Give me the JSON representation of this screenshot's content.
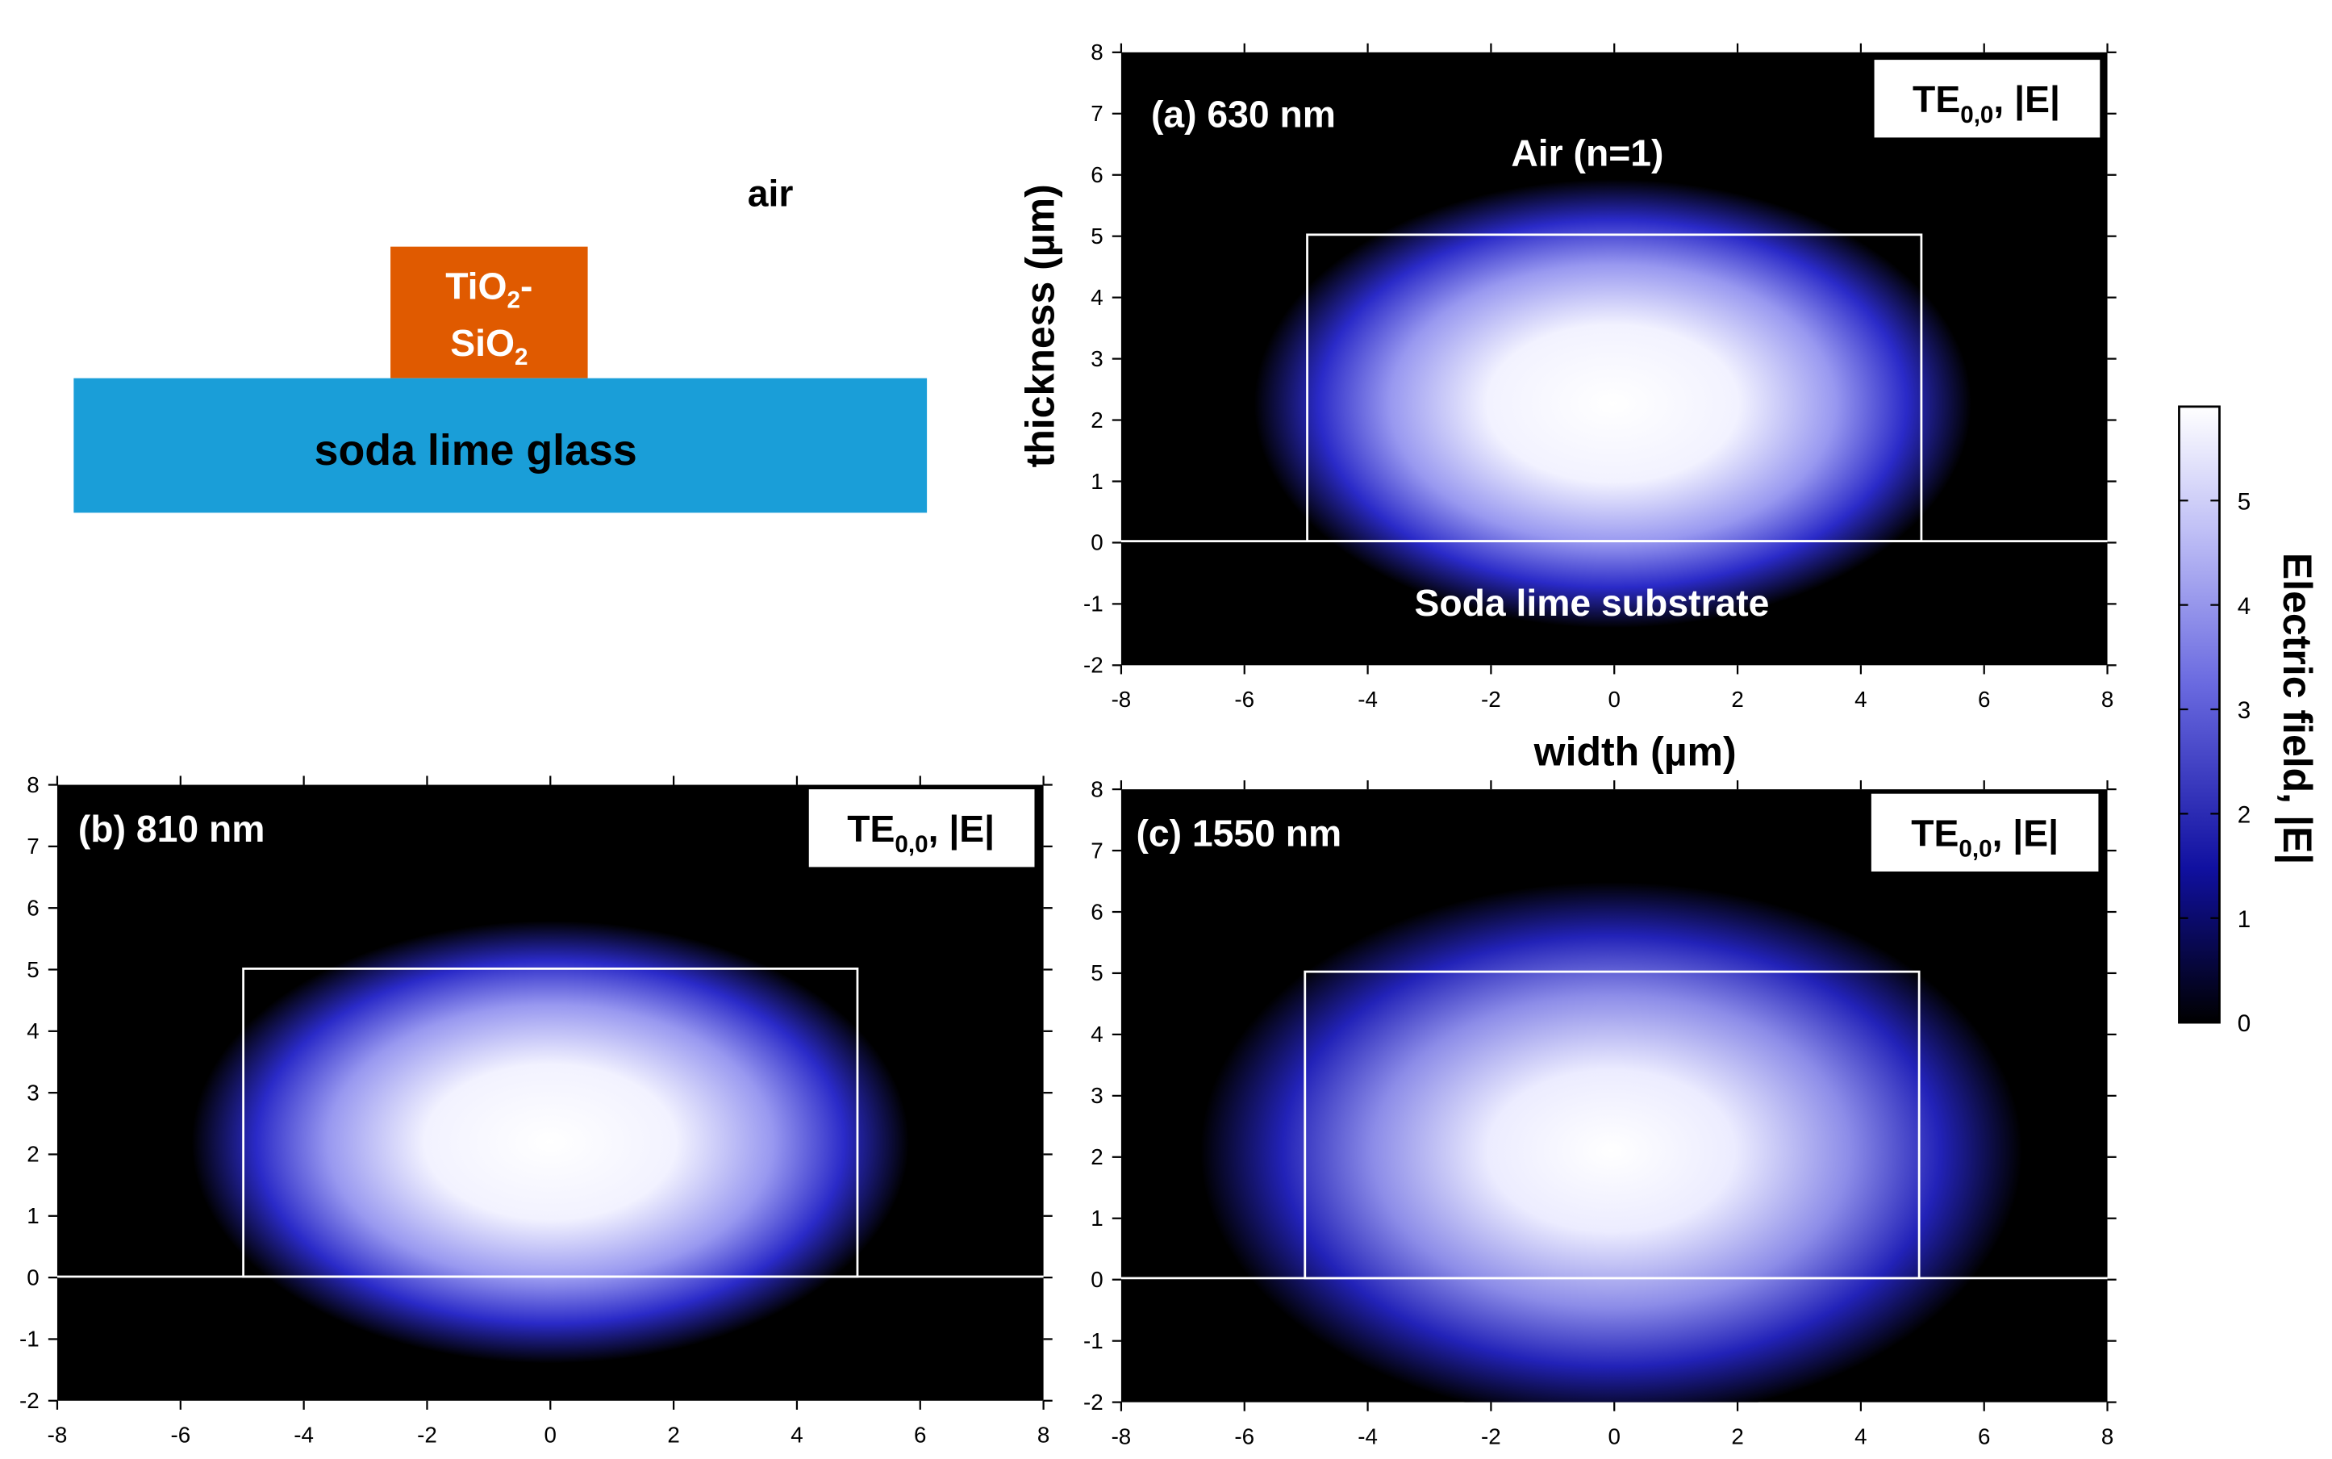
{
  "schematic": {
    "air_label": "air",
    "core_label_line1": "TiO",
    "core_label_line1_sub": "2",
    "core_label_line1_suffix": "-",
    "core_label_line2": "SiO",
    "core_label_line2_sub": "2",
    "substrate_label": "soda lime glass",
    "colors": {
      "core": "#e05a00",
      "substrate": "#1a9ed8"
    }
  },
  "axes": {
    "xlabel": "width (µm)",
    "ylabel": "thickness (µm)",
    "x_ticks": [
      "-8",
      "-6",
      "-4",
      "-2",
      "0",
      "2",
      "4",
      "6",
      "8"
    ],
    "y_ticks": [
      "8",
      "7",
      "6",
      "5",
      "4",
      "3",
      "2",
      "1",
      "0",
      "-1",
      "-2"
    ]
  },
  "panels": [
    {
      "label": "(a) 630 nm",
      "mode_main": "TE",
      "mode_sub": "0,0",
      "mode_suffix": ", |E|",
      "top_annotation": "Air (n=1)",
      "bottom_annotation": "Soda lime substrate"
    },
    {
      "label": "(b) 810 nm",
      "mode_main": "TE",
      "mode_sub": "0,0",
      "mode_suffix": ", |E|",
      "top_annotation": "",
      "bottom_annotation": ""
    },
    {
      "label": "(c) 1550 nm",
      "mode_main": "TE",
      "mode_sub": "0,0",
      "mode_suffix": ", |E|",
      "top_annotation": "",
      "bottom_annotation": ""
    }
  ],
  "colorbar": {
    "label": "Electric field, |E|",
    "ticks": [
      "5",
      "4",
      "3",
      "2",
      "1",
      "0"
    ],
    "colors": {
      "low": "#000000",
      "mid": "#2020c8",
      "high": "#ffffff"
    }
  },
  "chart_data": {
    "type": "heatmap",
    "xlim": [
      -8,
      8
    ],
    "ylim": [
      -2,
      8
    ],
    "waveguide": {
      "x": [
        -5,
        5
      ],
      "y": [
        0,
        5
      ]
    },
    "colorbar_range": [
      0,
      5.9
    ],
    "panels": [
      "(a) 630 nm",
      "(b) 810 nm",
      "(c) 1550 nm"
    ]
  }
}
